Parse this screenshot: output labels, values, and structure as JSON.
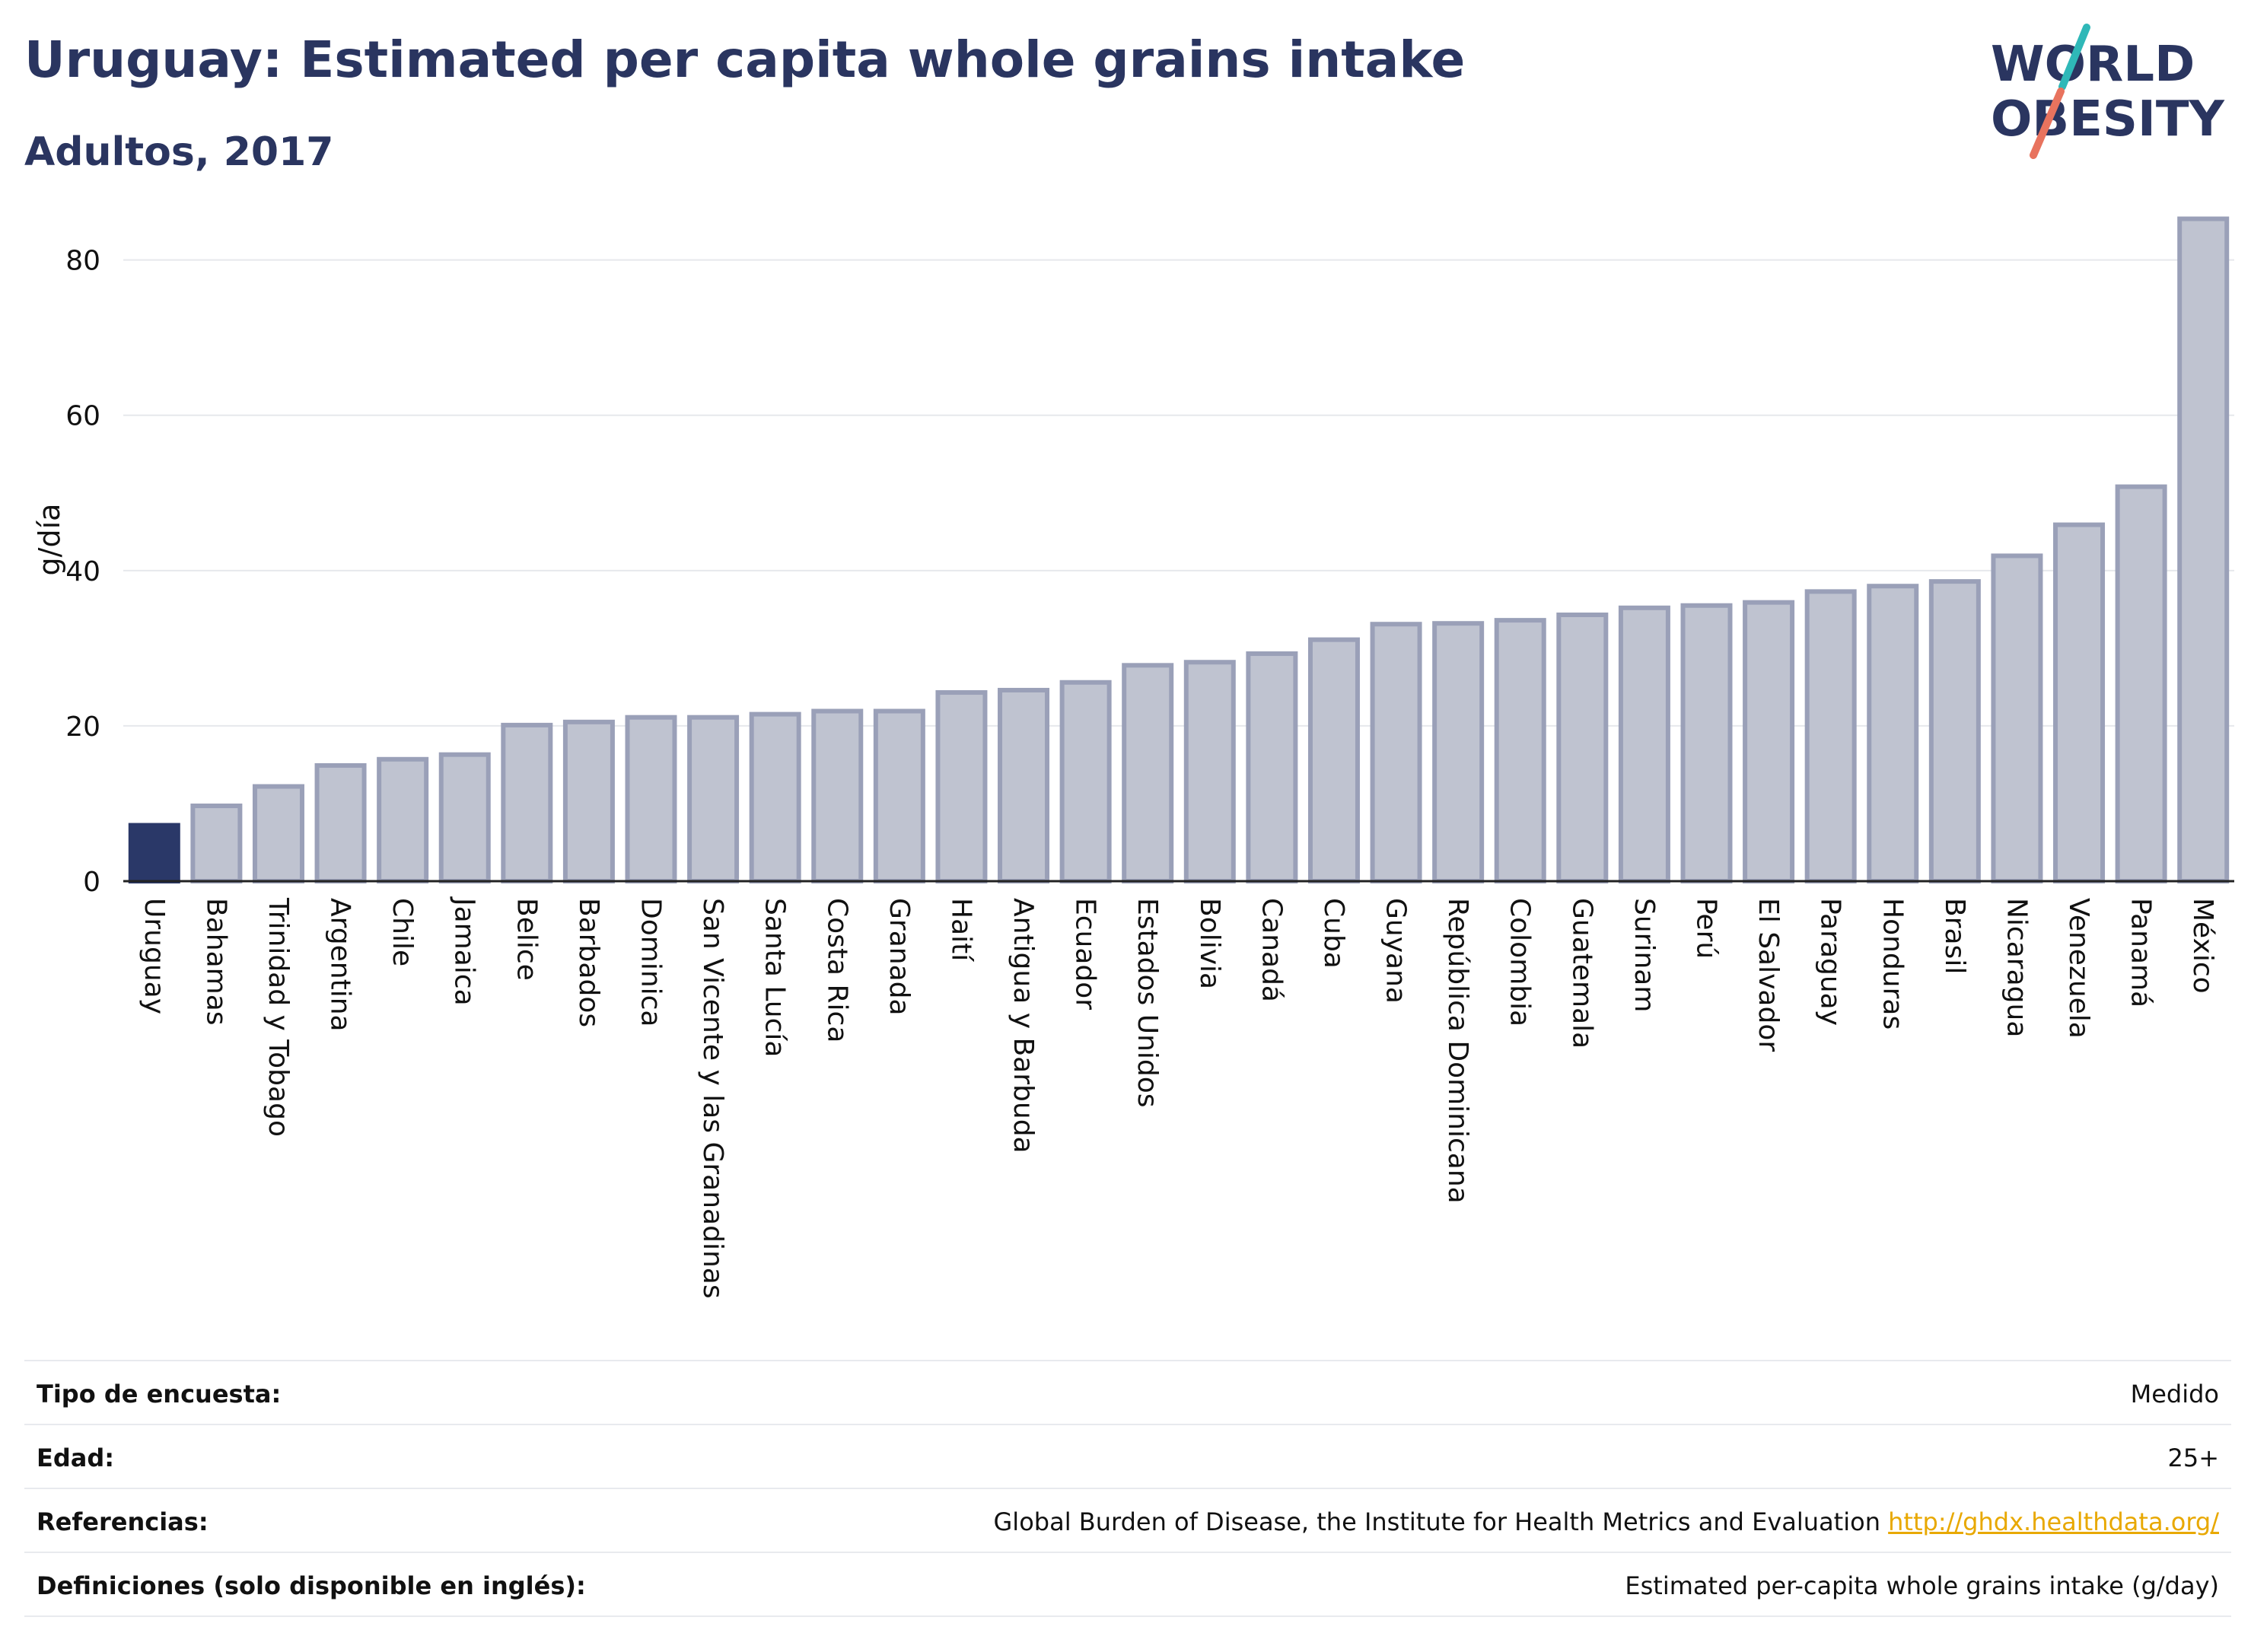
{
  "header": {
    "title": "Uruguay: Estimated per capita whole grains intake",
    "subtitle": "Adultos, 2017"
  },
  "logo": {
    "line1": "WORLD",
    "line2": "OBESITY"
  },
  "colors": {
    "highlight": "#2a3868",
    "bar": "#bfc3d0",
    "bar_stroke": "#9aa0b8",
    "grid": "#e6e8ec",
    "logo_teal": "#2fb8b8",
    "logo_coral": "#e8735e",
    "link": "#e8a800"
  },
  "chart_data": {
    "type": "bar",
    "ylabel": "g/día",
    "ylim": [
      0,
      88
    ],
    "yticks": [
      0,
      20,
      40,
      60,
      80
    ],
    "grid": true,
    "highlight_category": "Uruguay",
    "categories": [
      "Uruguay",
      "Bahamas",
      "Trinidad y Tobago",
      "Argentina",
      "Chile",
      "Jamaica",
      "Belice",
      "Barbados",
      "Dominica",
      "San Vicente y las Granadinas",
      "Santa Lucía",
      "Costa Rica",
      "Granada",
      "Haití",
      "Antigua y Barbuda",
      "Ecuador",
      "Estados Unidos",
      "Bolivia",
      "Canadá",
      "Cuba",
      "Guyana",
      "República Dominicana",
      "Colombia",
      "Guatemala",
      "Surinam",
      "Perú",
      "El Salvador",
      "Paraguay",
      "Honduras",
      "Brasil",
      "Nicaragua",
      "Venezuela",
      "Panamá",
      "México"
    ],
    "values": [
      7.2,
      9.7,
      12.2,
      14.9,
      15.7,
      16.3,
      20.1,
      20.5,
      21.1,
      21.1,
      21.5,
      21.9,
      21.9,
      24.3,
      24.6,
      25.6,
      27.8,
      28.2,
      29.3,
      31.1,
      33.1,
      33.2,
      33.6,
      34.3,
      35.2,
      35.5,
      35.9,
      37.3,
      38.0,
      38.6,
      41.9,
      45.9,
      50.8,
      85.3
    ]
  },
  "info": [
    {
      "label": "Tipo de encuesta:",
      "value": "Medido"
    },
    {
      "label": "Edad:",
      "value": "25+"
    },
    {
      "label": "Referencias:",
      "value": "Global Burden of Disease, the Institute for Health Metrics and Evaluation",
      "link": "http://ghdx.healthdata.org/"
    },
    {
      "label": "Definiciones (solo disponible en inglés):",
      "value": "Estimated per-capita whole grains intake (g/day)"
    }
  ]
}
